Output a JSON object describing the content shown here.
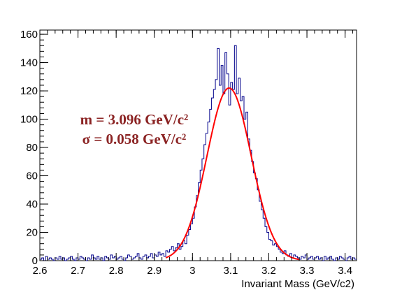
{
  "chart_data": {
    "type": "histogram",
    "title": "",
    "xlabel": "Invariant Mass (GeV/c2)",
    "ylabel": "",
    "xlim": [
      2.6,
      3.43
    ],
    "ylim": [
      0,
      163
    ],
    "xticks": [
      2.6,
      2.7,
      2.8,
      2.9,
      3.0,
      3.1,
      3.2,
      3.3,
      3.4
    ],
    "xtick_labels": [
      "2.6",
      "2.7",
      "2.8",
      "2.9",
      "3",
      "3.1",
      "3.2",
      "3.3",
      "3.4"
    ],
    "yticks": [
      0,
      20,
      40,
      60,
      80,
      100,
      120,
      140,
      160
    ],
    "ytick_labels": [
      "0",
      "20",
      "40",
      "60",
      "80",
      "100",
      "120",
      "140",
      "160"
    ],
    "grid": false,
    "series": [
      {
        "kind": "histogram",
        "color": "#00008b",
        "bin_width": 0.005,
        "x": [
          2.6,
          2.605,
          2.61,
          2.615,
          2.62,
          2.625,
          2.63,
          2.635,
          2.64,
          2.645,
          2.65,
          2.655,
          2.66,
          2.665,
          2.67,
          2.675,
          2.68,
          2.685,
          2.69,
          2.695,
          2.7,
          2.705,
          2.71,
          2.715,
          2.72,
          2.725,
          2.73,
          2.735,
          2.74,
          2.745,
          2.75,
          2.755,
          2.76,
          2.765,
          2.77,
          2.775,
          2.78,
          2.785,
          2.79,
          2.795,
          2.8,
          2.805,
          2.81,
          2.815,
          2.82,
          2.825,
          2.83,
          2.835,
          2.84,
          2.845,
          2.85,
          2.855,
          2.86,
          2.865,
          2.87,
          2.875,
          2.88,
          2.885,
          2.89,
          2.895,
          2.9,
          2.905,
          2.91,
          2.915,
          2.92,
          2.925,
          2.93,
          2.935,
          2.94,
          2.945,
          2.95,
          2.955,
          2.96,
          2.965,
          2.97,
          2.975,
          2.98,
          2.985,
          2.99,
          2.995,
          3.0,
          3.005,
          3.01,
          3.015,
          3.02,
          3.025,
          3.03,
          3.035,
          3.04,
          3.045,
          3.05,
          3.055,
          3.06,
          3.065,
          3.07,
          3.075,
          3.08,
          3.085,
          3.09,
          3.095,
          3.1,
          3.105,
          3.11,
          3.115,
          3.12,
          3.125,
          3.13,
          3.135,
          3.14,
          3.145,
          3.15,
          3.155,
          3.16,
          3.165,
          3.17,
          3.175,
          3.18,
          3.185,
          3.19,
          3.195,
          3.2,
          3.205,
          3.21,
          3.215,
          3.22,
          3.225,
          3.23,
          3.235,
          3.24,
          3.245,
          3.25,
          3.255,
          3.26,
          3.265,
          3.27,
          3.275,
          3.28,
          3.285,
          3.29,
          3.295,
          3.3,
          3.305,
          3.31,
          3.315,
          3.32,
          3.325,
          3.33,
          3.335,
          3.34,
          3.345,
          3.35,
          3.355,
          3.36,
          3.365,
          3.37,
          3.375,
          3.38,
          3.385,
          3.39,
          3.395,
          3.4,
          3.405,
          3.41,
          3.415,
          3.42,
          3.425
        ],
        "values": [
          1,
          2,
          0,
          3,
          1,
          2,
          1,
          0,
          2,
          1,
          3,
          1,
          2,
          0,
          1,
          2,
          3,
          1,
          0,
          2,
          1,
          3,
          2,
          1,
          0,
          2,
          1,
          4,
          2,
          1,
          3,
          1,
          2,
          0,
          3,
          2,
          1,
          4,
          2,
          3,
          1,
          2,
          3,
          1,
          0,
          2,
          4,
          3,
          1,
          2,
          3,
          5,
          2,
          1,
          3,
          4,
          2,
          3,
          5,
          2,
          4,
          3,
          6,
          4,
          5,
          3,
          7,
          6,
          8,
          10,
          7,
          9,
          12,
          8,
          10,
          14,
          12,
          18,
          22,
          26,
          30,
          38,
          46,
          55,
          64,
          72,
          82,
          90,
          98,
          107,
          115,
          121,
          128,
          150,
          124,
          138,
          118,
          147,
          132,
          110,
          126,
          121,
          152,
          118,
          129,
          113,
          116,
          100,
          105,
          86,
          78,
          70,
          62,
          58,
          50,
          42,
          36,
          30,
          24,
          20,
          15,
          14,
          11,
          12,
          10,
          8,
          6,
          5,
          7,
          4,
          3,
          5,
          2,
          4,
          3,
          2,
          1,
          3,
          2,
          4,
          1,
          2,
          3,
          1,
          2,
          3,
          1,
          2,
          0,
          3,
          1,
          2,
          3,
          1,
          0,
          2,
          1,
          3,
          2,
          1,
          0,
          2,
          3,
          1,
          2,
          1
        ]
      },
      {
        "kind": "fit-curve",
        "color": "#ff0000",
        "mean": 3.096,
        "sigma": 0.058,
        "amplitude": 122,
        "x_range": [
          2.93,
          3.28
        ]
      }
    ],
    "annotations": [
      "m = 3.096 GeV/c²",
      "σ = 0.058 GeV/c²"
    ]
  }
}
